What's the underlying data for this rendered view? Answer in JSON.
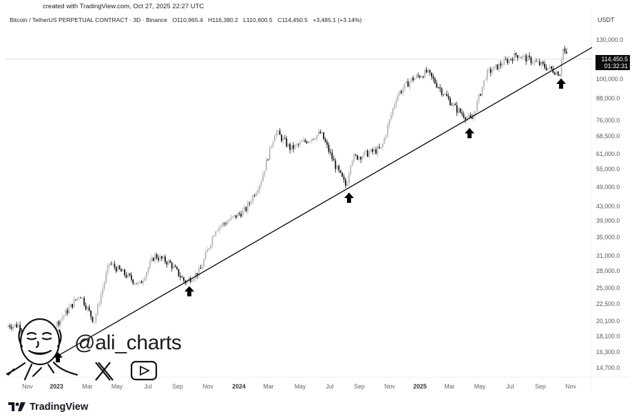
{
  "header": {
    "created_with": "created with TradingView.com, Oct 27, 2025 22:27 UTC",
    "symbol": "Bitcoin / TetherUS PERPETUAL CONTRACT · 3D · Binance",
    "open": "O110,965.4",
    "high": "H116,380.2",
    "low": "L110,600.5",
    "close": "C114,450.5",
    "change": "+3,485.1 (+3.14%)"
  },
  "price_scale": {
    "currency": "USDT",
    "last_price": "114,450.5",
    "countdown": "01:32:31"
  },
  "watermark": {
    "handle": "@ali_charts",
    "icons": [
      "x-logo-icon",
      "youtube-icon",
      "avatar-caricature"
    ]
  },
  "footer": {
    "brand": "TradingView"
  },
  "colors": {
    "up_candle": "#b5b5b5",
    "down_candle": "#111111",
    "trendline": "#111111",
    "arrow": "#000000",
    "last_price_bg": "#0c0c0c",
    "background": "#ffffff"
  },
  "chart_data": {
    "type": "candlestick",
    "title": "Bitcoin / TetherUS PERPETUAL CONTRACT · 3D · Binance",
    "scale": "log",
    "ylabel": "USDT",
    "y_ticks": [
      "130,000.0",
      "100,000.0",
      "88,000.0",
      "76,000.0",
      "68,500.0",
      "61,000.0",
      "55,000.0",
      "49,000.0",
      "43,000.0",
      "39,000.0",
      "35,000.0",
      "31,000.0",
      "28,000.0",
      "25,000.0",
      "22,500.0",
      "20,100.0",
      "18,100.0",
      "16,300.0",
      "14,700.0"
    ],
    "x_ticks": [
      "Nov",
      "2023",
      "Mar",
      "May",
      "Jul",
      "Sep",
      "Nov",
      "2024",
      "Mar",
      "May",
      "Jul",
      "Sep",
      "Nov",
      "2025",
      "Mar",
      "May",
      "Jul",
      "Sep",
      "Nov"
    ],
    "ylim": [
      13500,
      142000
    ],
    "last_price": 114450.5,
    "ohlc_last": {
      "open": 110965.4,
      "high": 116380.2,
      "low": 110600.5,
      "close": 114450.5,
      "change": 3485.1,
      "change_pct": 3.14
    },
    "price_path_approx": [
      {
        "date": "2022-10",
        "price": 19500
      },
      {
        "date": "2022-11",
        "price": 16500
      },
      {
        "date": "2023-01",
        "price": 21000
      },
      {
        "date": "2023-02",
        "price": 24000
      },
      {
        "date": "2023-03",
        "price": 20000
      },
      {
        "date": "2023-04",
        "price": 29500
      },
      {
        "date": "2023-06",
        "price": 25500
      },
      {
        "date": "2023-07",
        "price": 31000
      },
      {
        "date": "2023-08",
        "price": 29500
      },
      {
        "date": "2023-09",
        "price": 26000
      },
      {
        "date": "2023-10",
        "price": 28000
      },
      {
        "date": "2023-11",
        "price": 37000
      },
      {
        "date": "2024-01",
        "price": 42000
      },
      {
        "date": "2024-02",
        "price": 51000
      },
      {
        "date": "2024-03",
        "price": 71000
      },
      {
        "date": "2024-04",
        "price": 63000
      },
      {
        "date": "2024-06",
        "price": 70000
      },
      {
        "date": "2024-07",
        "price": 56000
      },
      {
        "date": "2024-08",
        "price": 59000
      },
      {
        "date": "2024-08-05",
        "price": 49000
      },
      {
        "date": "2024-10",
        "price": 63000
      },
      {
        "date": "2024-11",
        "price": 90000
      },
      {
        "date": "2024-12",
        "price": 100000
      },
      {
        "date": "2025-01",
        "price": 105000
      },
      {
        "date": "2025-03",
        "price": 82000
      },
      {
        "date": "2025-04",
        "price": 76000
      },
      {
        "date": "2025-05",
        "price": 104000
      },
      {
        "date": "2025-07",
        "price": 118000
      },
      {
        "date": "2025-08",
        "price": 113000
      },
      {
        "date": "2025-10",
        "price": 124000
      },
      {
        "date": "2025-10-11",
        "price": 104000
      },
      {
        "date": "2025-10-27",
        "price": 114450.5
      }
    ],
    "trendline": {
      "from": {
        "date": "2022-12",
        "price": 16300
      },
      "to": {
        "date": "2025-11",
        "price": 116000
      }
    },
    "annotations": [
      {
        "type": "arrow-up",
        "date": "2022-12",
        "price": 16500
      },
      {
        "type": "arrow-up",
        "date": "2023-09",
        "price": 25000
      },
      {
        "type": "arrow-up",
        "date": "2024-08",
        "price": 47000
      },
      {
        "type": "arrow-up",
        "date": "2025-04",
        "price": 74500
      },
      {
        "type": "arrow-up",
        "date": "2025-10",
        "price": 103000
      }
    ],
    "grid": false,
    "legend_position": "top-left"
  }
}
